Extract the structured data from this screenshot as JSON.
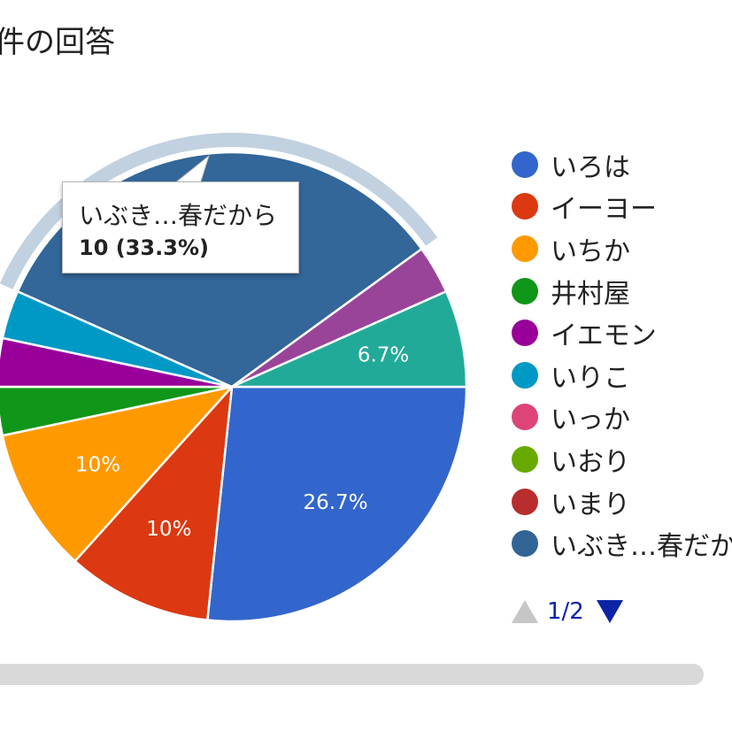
{
  "header": {
    "title": "件の回答"
  },
  "chart_data": {
    "type": "pie",
    "slices": [
      {
        "label": "いろは",
        "value": 8,
        "percent_label": "26.7%",
        "color": "#3366cc"
      },
      {
        "label": "イーヨー",
        "value": 3,
        "percent_label": "10%",
        "color": "#dc3912"
      },
      {
        "label": "いちか",
        "value": 3,
        "percent_label": "10%",
        "color": "#ff9900"
      },
      {
        "label": "井村屋",
        "value": 1,
        "percent_label": "",
        "color": "#109618"
      },
      {
        "label": "イエモン",
        "value": 1,
        "percent_label": "",
        "color": "#990099"
      },
      {
        "label": "いりこ",
        "value": 1,
        "percent_label": "",
        "color": "#0099c6"
      },
      {
        "label": "いぶき…春だから",
        "value": 10,
        "percent_label": "",
        "color": "#336699"
      },
      {
        "label": "",
        "value": 1,
        "percent_label": "",
        "color": "#994499"
      },
      {
        "label": "",
        "value": 2,
        "percent_label": "6.7%",
        "color": "#22aa99"
      }
    ],
    "highlighted_slice": 6
  },
  "legend": {
    "items": [
      {
        "label": "いろは",
        "color": "#3366cc"
      },
      {
        "label": "イーヨー",
        "color": "#dc3912"
      },
      {
        "label": "いちか",
        "color": "#ff9900"
      },
      {
        "label": "井村屋",
        "color": "#109618"
      },
      {
        "label": "イエモン",
        "color": "#990099"
      },
      {
        "label": "いりこ",
        "color": "#0099c6"
      },
      {
        "label": "いっか",
        "color": "#dd4477"
      },
      {
        "label": "いおり",
        "color": "#66aa00"
      },
      {
        "label": "いまり",
        "color": "#b82e2e"
      },
      {
        "label": "いぶき…春だから",
        "color": "#316395"
      }
    ],
    "pager": {
      "text": "1/2",
      "prev_icon": "triangle-up-icon",
      "next_icon": "triangle-down-icon"
    }
  },
  "tooltip": {
    "label": "いぶき…春だから",
    "value": "10 (33.3%)"
  }
}
